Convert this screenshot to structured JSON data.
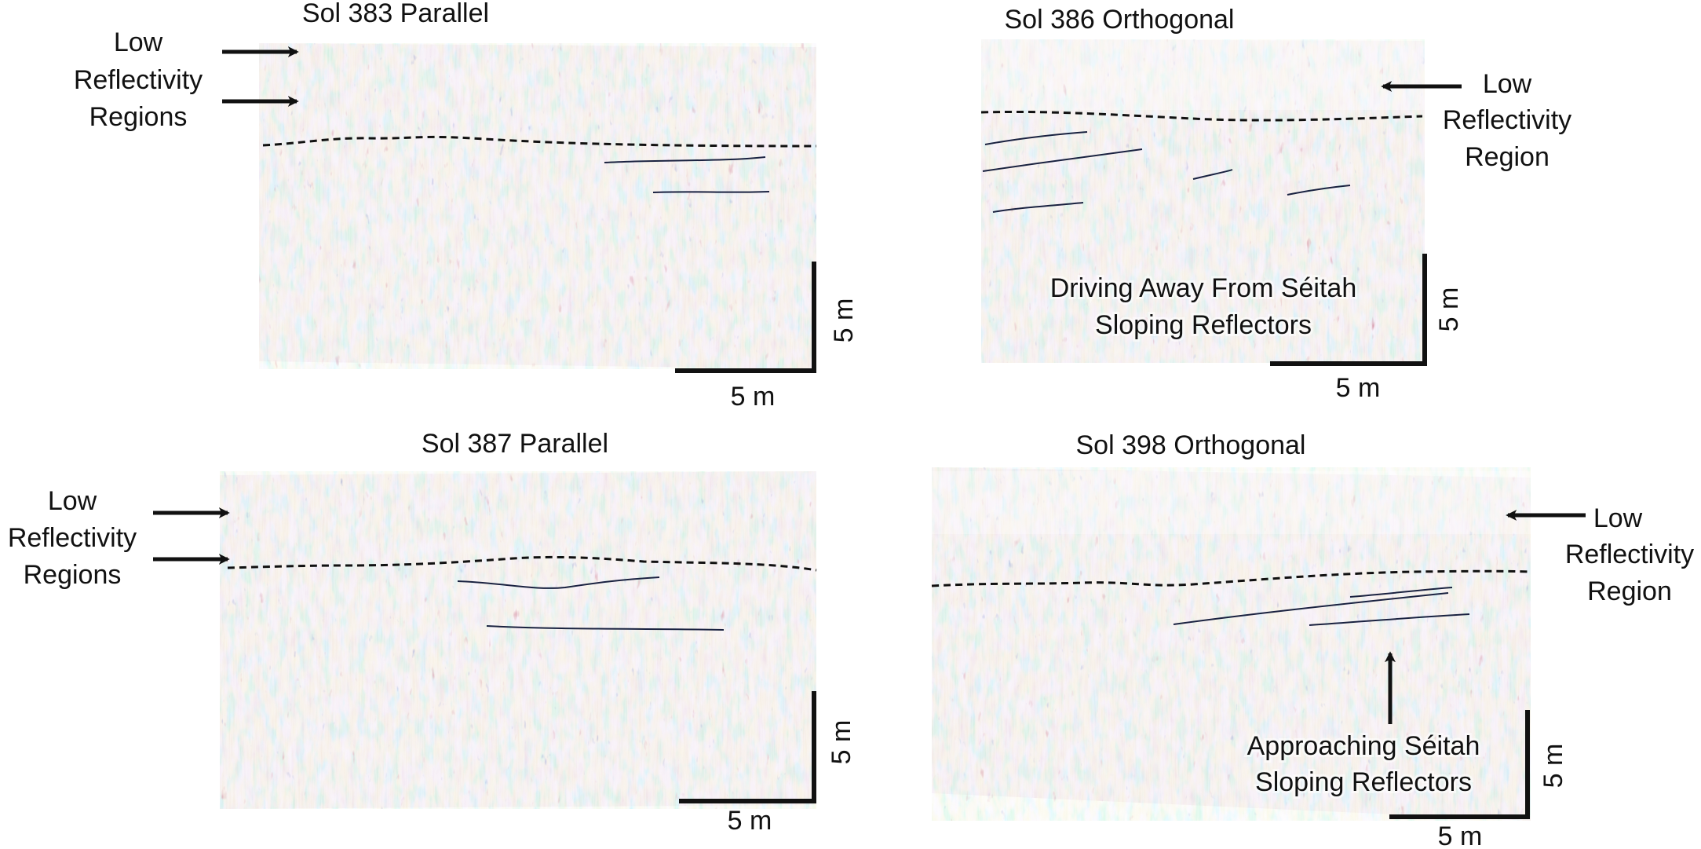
{
  "panels": [
    {
      "title": "Sol 383 Parallel",
      "annotations": [
        {
          "lines": [
            "Low",
            "Reflectivity",
            "Regions"
          ]
        }
      ],
      "scale": {
        "horizontal": "5 m",
        "vertical": "5 m"
      }
    },
    {
      "title": "Sol 386 Orthogonal",
      "annotations": [
        {
          "lines": [
            "Low",
            "Reflectivity",
            "Region"
          ]
        },
        {
          "lines": [
            "Driving Away From Séitah",
            "Sloping Reflectors"
          ]
        }
      ],
      "scale": {
        "horizontal": "5 m",
        "vertical": "5 m"
      }
    },
    {
      "title": "Sol 387 Parallel",
      "annotations": [
        {
          "lines": [
            "Low",
            "Reflectivity",
            "Regions"
          ]
        }
      ],
      "scale": {
        "horizontal": "5 m",
        "vertical": "5 m"
      }
    },
    {
      "title": "Sol 398 Orthogonal",
      "annotations": [
        {
          "lines": [
            "Low",
            "Reflectivity",
            "Region"
          ]
        },
        {
          "lines": [
            "Approaching Séitah",
            "Sloping Reflectors"
          ]
        }
      ],
      "scale": {
        "horizontal": "5 m",
        "vertical": "5 m"
      }
    }
  ],
  "colors": {
    "radargram_base": "#e9d6e6",
    "reflector_red": "#b5283b",
    "reflector_blue": "#2f3f9a",
    "annotation_line": "#111111"
  }
}
